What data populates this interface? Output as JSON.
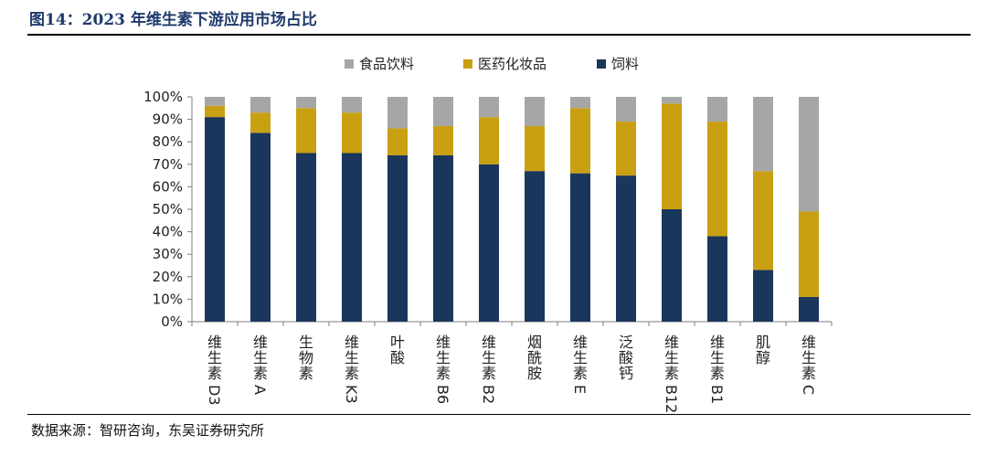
{
  "figure": {
    "title": "图14：2023 年维生素下游应用市场占比",
    "source": "数据来源：智研咨询，东吴证券研究所"
  },
  "colors": {
    "feed": "#1b365d",
    "pharma": "#c9a012",
    "food": "#a6a6a6"
  },
  "chart_data": {
    "type": "bar",
    "stacked": true,
    "categories": [
      "维生素D3",
      "维生素A",
      "生物素",
      "维生素K3",
      "叶酸",
      "维生素B6",
      "维生素B2",
      "烟酰胺",
      "维生素E",
      "泛酸钙",
      "维生素B12",
      "维生素B1",
      "肌醇",
      "维生素C"
    ],
    "series": [
      {
        "name": "饲料",
        "values": [
          91,
          84,
          75,
          75,
          74,
          74,
          70,
          67,
          66,
          65,
          50,
          38,
          23,
          11
        ]
      },
      {
        "name": "医药化妆品",
        "values": [
          5,
          9,
          20,
          18,
          12,
          13,
          21,
          20,
          29,
          24,
          47,
          51,
          44,
          38
        ]
      },
      {
        "name": "食品饮料",
        "values": [
          4,
          7,
          5,
          7,
          14,
          13,
          9,
          13,
          5,
          11,
          3,
          11,
          33,
          51
        ]
      }
    ],
    "legend_order": [
      "食品饮料",
      "医药化妆品",
      "饲料"
    ],
    "legend_position": "top",
    "ylim": [
      0,
      100
    ],
    "yticks": [
      "0%",
      "10%",
      "20%",
      "30%",
      "40%",
      "50%",
      "60%",
      "70%",
      "80%",
      "90%",
      "100%"
    ],
    "grid": false
  }
}
